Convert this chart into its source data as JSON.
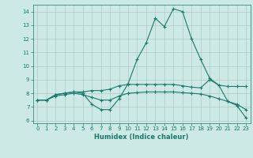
{
  "xlabel": "Humidex (Indice chaleur)",
  "xlim": [
    -0.5,
    23.5
  ],
  "ylim": [
    5.8,
    14.5
  ],
  "yticks": [
    6,
    7,
    8,
    9,
    10,
    11,
    12,
    13,
    14
  ],
  "xticks": [
    0,
    1,
    2,
    3,
    4,
    5,
    6,
    7,
    8,
    9,
    10,
    11,
    12,
    13,
    14,
    15,
    16,
    17,
    18,
    19,
    20,
    21,
    22,
    23
  ],
  "background_color": "#cce9e5",
  "grid_color": "#b0c8c4",
  "line_color": "#1a7a6a",
  "line1_x": [
    0,
    1,
    2,
    3,
    4,
    5,
    6,
    7,
    8,
    9,
    10,
    11,
    12,
    13,
    14,
    15,
    16,
    17,
    18,
    19,
    20,
    21,
    22,
    23
  ],
  "line1_y": [
    7.5,
    7.5,
    7.9,
    8.0,
    8.1,
    8.0,
    7.2,
    6.8,
    6.8,
    7.6,
    8.7,
    10.5,
    11.7,
    13.5,
    12.9,
    14.2,
    14.0,
    12.0,
    10.5,
    9.1,
    8.6,
    7.4,
    7.1,
    6.2
  ],
  "line2_x": [
    0,
    1,
    2,
    3,
    4,
    5,
    6,
    7,
    8,
    9,
    10,
    11,
    12,
    13,
    14,
    15,
    16,
    17,
    18,
    19,
    20,
    21,
    22,
    23
  ],
  "line2_y": [
    7.5,
    7.5,
    7.9,
    8.0,
    8.1,
    8.1,
    8.2,
    8.2,
    8.3,
    8.55,
    8.65,
    8.65,
    8.65,
    8.65,
    8.65,
    8.65,
    8.55,
    8.45,
    8.4,
    9.0,
    8.6,
    8.5,
    8.5,
    8.5
  ],
  "line3_x": [
    0,
    1,
    2,
    3,
    4,
    5,
    6,
    7,
    8,
    9,
    10,
    11,
    12,
    13,
    14,
    15,
    16,
    17,
    18,
    19,
    20,
    21,
    22,
    23
  ],
  "line3_y": [
    7.5,
    7.5,
    7.8,
    7.9,
    8.0,
    7.9,
    7.7,
    7.5,
    7.5,
    7.8,
    8.0,
    8.05,
    8.1,
    8.1,
    8.1,
    8.1,
    8.05,
    8.0,
    7.95,
    7.8,
    7.6,
    7.4,
    7.2,
    6.8
  ]
}
